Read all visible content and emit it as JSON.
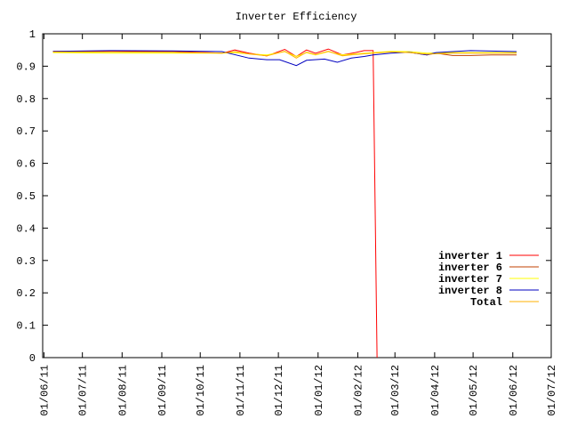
{
  "chart_data": {
    "type": "line",
    "title": "Inverter Efficiency",
    "xlabel": "",
    "ylabel": "",
    "xlim": [
      "2011-05-31",
      "2012-07-01"
    ],
    "ylim": [
      0,
      1
    ],
    "grid": false,
    "legend_position": "right",
    "y_ticks": [
      "0",
      "0.1",
      "0.2",
      "0.3",
      "0.4",
      "0.5",
      "0.6",
      "0.7",
      "0.8",
      "0.9",
      "1"
    ],
    "x_ticks": [
      {
        "date": "2011-06-01",
        "label": "01/06/11"
      },
      {
        "date": "2011-07-01",
        "label": "01/07/11"
      },
      {
        "date": "2011-08-01",
        "label": "01/08/11"
      },
      {
        "date": "2011-09-01",
        "label": "01/09/11"
      },
      {
        "date": "2011-10-01",
        "label": "01/10/11"
      },
      {
        "date": "2011-11-01",
        "label": "01/11/11"
      },
      {
        "date": "2011-12-01",
        "label": "01/12/11"
      },
      {
        "date": "2012-01-01",
        "label": "01/01/12"
      },
      {
        "date": "2012-02-01",
        "label": "01/02/12"
      },
      {
        "date": "2012-03-01",
        "label": "01/03/12"
      },
      {
        "date": "2012-04-01",
        "label": "01/04/12"
      },
      {
        "date": "2012-05-01",
        "label": "01/05/12"
      },
      {
        "date": "2012-06-01",
        "label": "01/06/12"
      },
      {
        "date": "2012-07-01",
        "label": "01/07/12"
      }
    ],
    "series": [
      {
        "name": "inverter 1",
        "color": "#ff0000",
        "points": [
          [
            "2011-06-08",
            0.946
          ],
          [
            "2011-07-23",
            0.946
          ],
          [
            "2011-09-10",
            0.946
          ],
          [
            "2011-10-18",
            0.94
          ],
          [
            "2011-10-28",
            0.95
          ],
          [
            "2011-11-08",
            0.94
          ],
          [
            "2011-11-22",
            0.932
          ],
          [
            "2011-12-06",
            0.952
          ],
          [
            "2011-12-15",
            0.93
          ],
          [
            "2011-12-23",
            0.95
          ],
          [
            "2011-12-30",
            0.94
          ],
          [
            "2012-01-09",
            0.953
          ],
          [
            "2012-01-20",
            0.935
          ],
          [
            "2012-01-30",
            0.942
          ],
          [
            "2012-02-06",
            0.948
          ],
          [
            "2012-02-13",
            0.948
          ],
          [
            "2012-02-16",
            0.0
          ]
        ]
      },
      {
        "name": "inverter 6",
        "color": "#c04000",
        "points": [
          [
            "2012-03-12",
            0.943
          ],
          [
            "2012-03-26",
            0.935
          ],
          [
            "2012-04-02",
            0.94
          ],
          [
            "2012-04-15",
            0.933
          ],
          [
            "2012-04-29",
            0.933
          ],
          [
            "2012-05-15",
            0.935
          ],
          [
            "2012-06-04",
            0.935
          ]
        ]
      },
      {
        "name": "inverter 7",
        "color": "#ffff00",
        "points": [
          [
            "2011-06-08",
            0.942
          ],
          [
            "2011-07-23",
            0.94
          ],
          [
            "2011-09-10",
            0.94
          ],
          [
            "2011-10-18",
            0.94
          ],
          [
            "2011-10-28",
            0.942
          ],
          [
            "2011-11-08",
            0.938
          ],
          [
            "2011-11-22",
            0.935
          ],
          [
            "2011-12-06",
            0.945
          ],
          [
            "2011-12-15",
            0.93
          ],
          [
            "2011-12-23",
            0.942
          ],
          [
            "2011-12-30",
            0.935
          ],
          [
            "2012-01-09",
            0.945
          ],
          [
            "2012-01-20",
            0.935
          ],
          [
            "2012-01-30",
            0.938
          ],
          [
            "2012-02-13",
            0.942
          ],
          [
            "2012-02-27",
            0.946
          ],
          [
            "2012-03-12",
            0.945
          ],
          [
            "2012-03-26",
            0.94
          ],
          [
            "2012-04-15",
            0.942
          ],
          [
            "2012-06-04",
            0.942
          ]
        ]
      },
      {
        "name": "inverter 8",
        "color": "#0000c0",
        "points": [
          [
            "2011-06-08",
            0.946
          ],
          [
            "2011-07-23",
            0.948
          ],
          [
            "2011-09-10",
            0.947
          ],
          [
            "2011-10-18",
            0.945
          ],
          [
            "2011-11-08",
            0.925
          ],
          [
            "2011-11-22",
            0.92
          ],
          [
            "2011-12-02",
            0.92
          ],
          [
            "2011-12-15",
            0.902
          ],
          [
            "2011-12-23",
            0.918
          ],
          [
            "2012-01-06",
            0.922
          ],
          [
            "2012-01-16",
            0.912
          ],
          [
            "2012-01-27",
            0.925
          ],
          [
            "2012-02-06",
            0.93
          ],
          [
            "2012-02-13",
            0.935
          ],
          [
            "2012-02-27",
            0.94
          ],
          [
            "2012-03-12",
            0.943
          ],
          [
            "2012-03-26",
            0.935
          ],
          [
            "2012-04-02",
            0.942
          ],
          [
            "2012-04-15",
            0.945
          ],
          [
            "2012-04-29",
            0.948
          ],
          [
            "2012-06-04",
            0.945
          ]
        ]
      },
      {
        "name": "Total",
        "color": "#ffb000",
        "points": [
          [
            "2011-06-08",
            0.944
          ],
          [
            "2011-07-23",
            0.944
          ],
          [
            "2011-09-10",
            0.943
          ],
          [
            "2011-10-18",
            0.94
          ],
          [
            "2011-10-28",
            0.945
          ],
          [
            "2011-11-08",
            0.938
          ],
          [
            "2011-11-22",
            0.932
          ],
          [
            "2011-12-06",
            0.946
          ],
          [
            "2011-12-15",
            0.925
          ],
          [
            "2011-12-23",
            0.943
          ],
          [
            "2011-12-30",
            0.936
          ],
          [
            "2012-01-09",
            0.946
          ],
          [
            "2012-01-20",
            0.932
          ],
          [
            "2012-01-30",
            0.936
          ],
          [
            "2012-02-13",
            0.94
          ],
          [
            "2012-02-27",
            0.944
          ],
          [
            "2012-03-12",
            0.942
          ],
          [
            "2012-03-26",
            0.937
          ],
          [
            "2012-04-15",
            0.94
          ],
          [
            "2012-06-04",
            0.94
          ]
        ]
      }
    ]
  }
}
